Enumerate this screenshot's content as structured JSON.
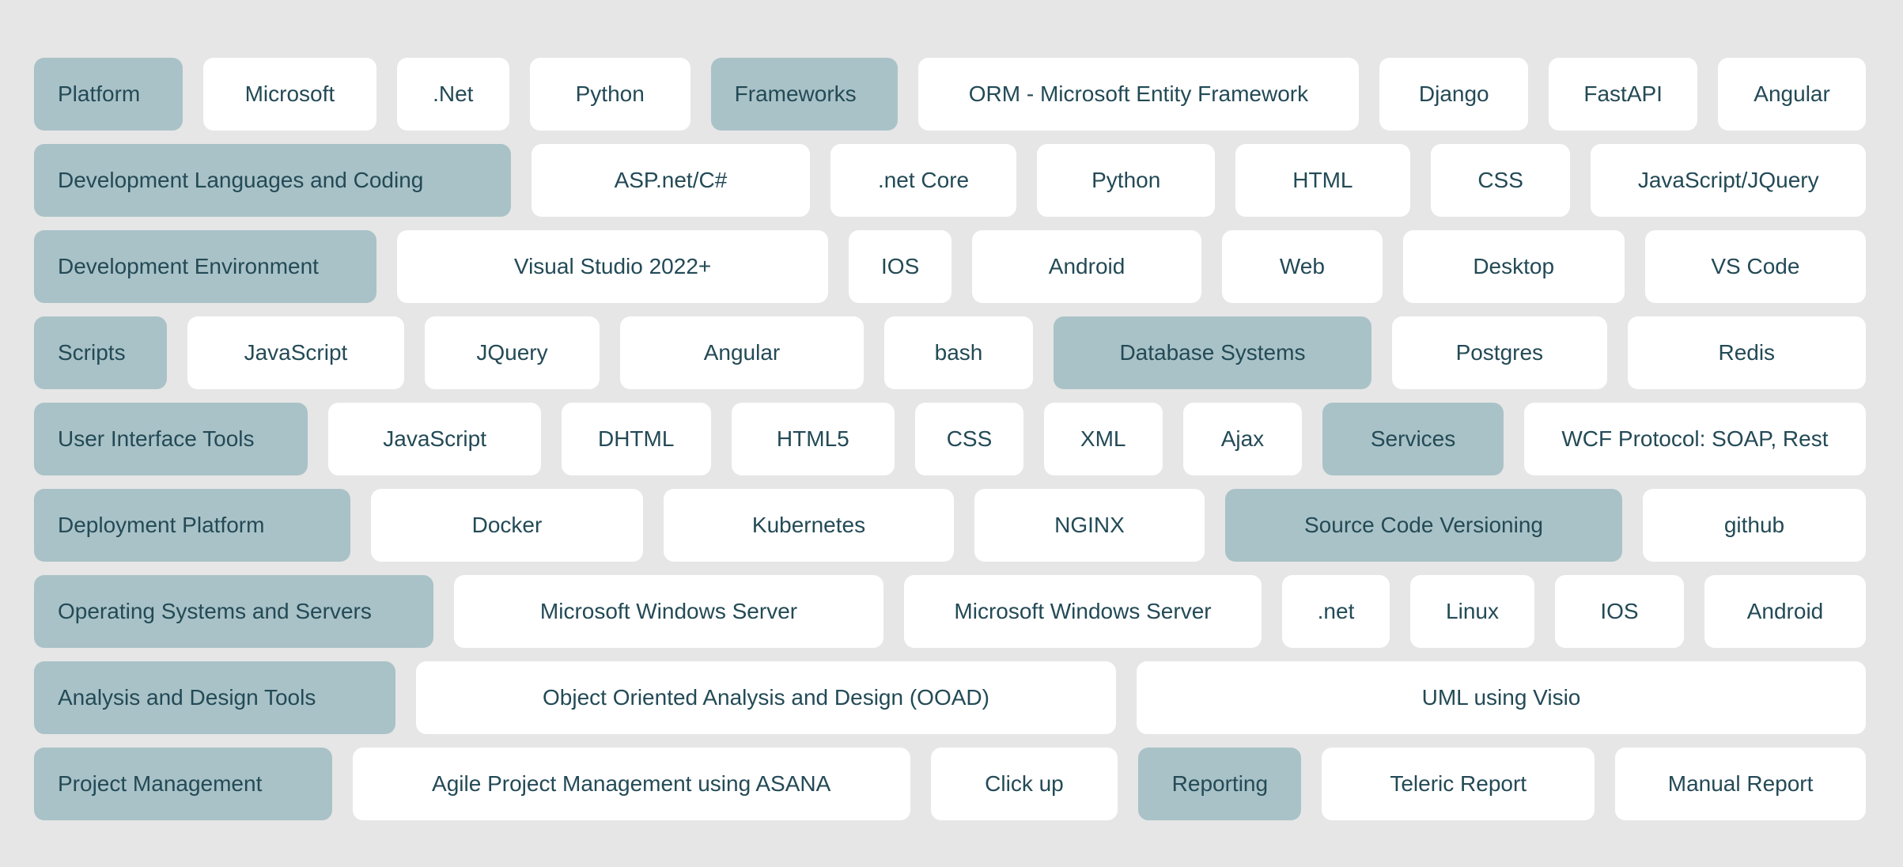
{
  "colors": {
    "page_background": "#e6e6e6",
    "category_fill": "#a9c2c7",
    "item_fill": "#ffffff",
    "text": "#234a56"
  },
  "rows": [
    {
      "cells": [
        {
          "label": "Platform",
          "kind": "category"
        },
        {
          "label": "Microsoft",
          "kind": "item"
        },
        {
          "label": ".Net",
          "kind": "item"
        },
        {
          "label": "Python",
          "kind": "item"
        },
        {
          "label": "Frameworks",
          "kind": "category"
        },
        {
          "label": "ORM - Microsoft Entity Framework",
          "kind": "item"
        },
        {
          "label": "Django",
          "kind": "item"
        },
        {
          "label": "FastAPI",
          "kind": "item"
        },
        {
          "label": "Angular",
          "kind": "item"
        }
      ]
    },
    {
      "cells": [
        {
          "label": "Development Languages and Coding",
          "kind": "category"
        },
        {
          "label": "ASP.net/C#",
          "kind": "item"
        },
        {
          "label": ".net Core",
          "kind": "item"
        },
        {
          "label": "Python",
          "kind": "item"
        },
        {
          "label": "HTML",
          "kind": "item"
        },
        {
          "label": "CSS",
          "kind": "item"
        },
        {
          "label": "JavaScript/JQuery",
          "kind": "item"
        }
      ]
    },
    {
      "cells": [
        {
          "label": "Development Environment",
          "kind": "category"
        },
        {
          "label": "Visual Studio 2022+",
          "kind": "item"
        },
        {
          "label": "IOS",
          "kind": "item"
        },
        {
          "label": "Android",
          "kind": "item"
        },
        {
          "label": "Web",
          "kind": "item"
        },
        {
          "label": "Desktop",
          "kind": "item"
        },
        {
          "label": "VS Code",
          "kind": "item"
        }
      ]
    },
    {
      "cells": [
        {
          "label": "Scripts",
          "kind": "category"
        },
        {
          "label": "JavaScript",
          "kind": "item"
        },
        {
          "label": "JQuery",
          "kind": "item"
        },
        {
          "label": "Angular",
          "kind": "item"
        },
        {
          "label": "bash",
          "kind": "item"
        },
        {
          "label": "Database Systems",
          "kind": "category-centered"
        },
        {
          "label": "Postgres",
          "kind": "item"
        },
        {
          "label": "Redis",
          "kind": "item"
        }
      ]
    },
    {
      "cells": [
        {
          "label": "User Interface Tools",
          "kind": "category"
        },
        {
          "label": "JavaScript",
          "kind": "item"
        },
        {
          "label": "DHTML",
          "kind": "item"
        },
        {
          "label": "HTML5",
          "kind": "item"
        },
        {
          "label": "CSS",
          "kind": "item"
        },
        {
          "label": "XML",
          "kind": "item"
        },
        {
          "label": "Ajax",
          "kind": "item"
        },
        {
          "label": "Services",
          "kind": "category-centered"
        },
        {
          "label": "WCF Protocol: SOAP, Rest",
          "kind": "item"
        }
      ]
    },
    {
      "cells": [
        {
          "label": "Deployment Platform",
          "kind": "category"
        },
        {
          "label": "Docker",
          "kind": "item"
        },
        {
          "label": "Kubernetes",
          "kind": "item"
        },
        {
          "label": "NGINX",
          "kind": "item"
        },
        {
          "label": "Source Code Versioning",
          "kind": "category-centered"
        },
        {
          "label": "github",
          "kind": "item"
        }
      ]
    },
    {
      "cells": [
        {
          "label": "Operating Systems and Servers",
          "kind": "category"
        },
        {
          "label": "Microsoft Windows Server",
          "kind": "item"
        },
        {
          "label": "Microsoft Windows Server",
          "kind": "item"
        },
        {
          "label": ".net",
          "kind": "item"
        },
        {
          "label": "Linux",
          "kind": "item"
        },
        {
          "label": "IOS",
          "kind": "item"
        },
        {
          "label": "Android",
          "kind": "item"
        }
      ]
    },
    {
      "cells": [
        {
          "label": "Analysis and Design Tools",
          "kind": "category"
        },
        {
          "label": "Object Oriented Analysis and Design (OOAD)",
          "kind": "item"
        },
        {
          "label": "UML using Visio",
          "kind": "item"
        }
      ]
    },
    {
      "cells": [
        {
          "label": "Project Management",
          "kind": "category"
        },
        {
          "label": "Agile Project Management using ASANA",
          "kind": "item"
        },
        {
          "label": "Click up",
          "kind": "item"
        },
        {
          "label": "Reporting",
          "kind": "category-centered"
        },
        {
          "label": "Teleric Report",
          "kind": "item"
        },
        {
          "label": "Manual Report",
          "kind": "item"
        }
      ]
    }
  ]
}
